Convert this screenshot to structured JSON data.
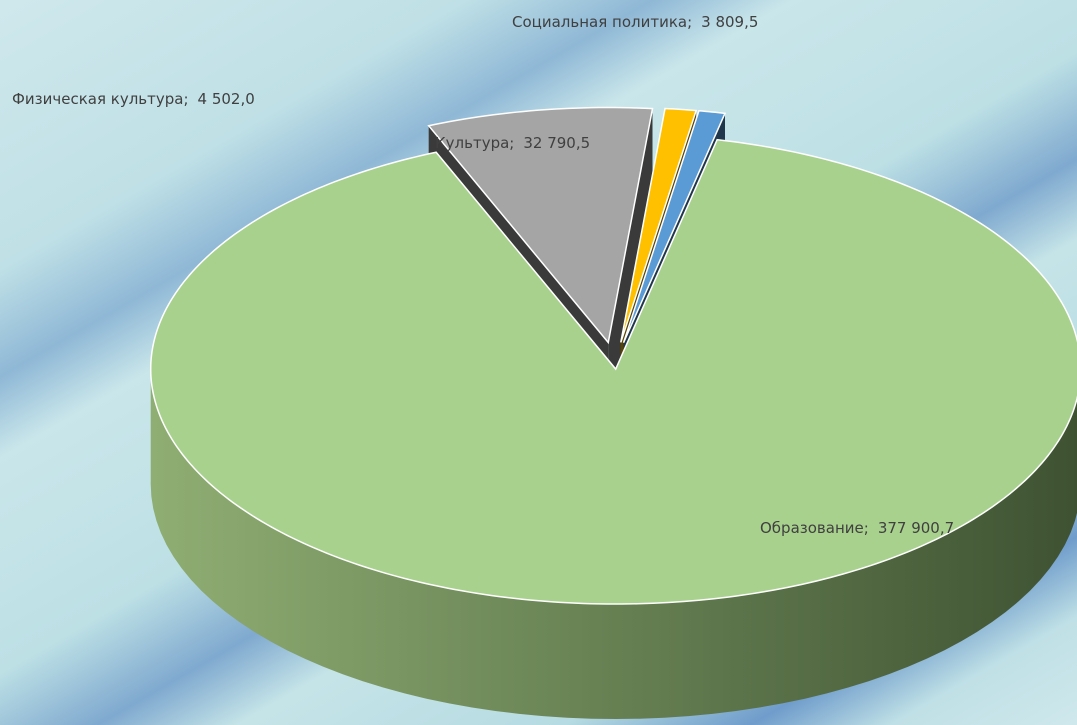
{
  "chart_data": {
    "type": "pie",
    "categories": [
      "Образование",
      "Культура",
      "Физическая культура",
      "Социальная политика"
    ],
    "values": [
      377900.7,
      32790.5,
      4502.0,
      3809.5
    ],
    "value_labels": [
      "377 900,7",
      "32 790,5",
      "4 502,0",
      "3 809,5"
    ],
    "label_separator": ";",
    "colors": [
      "#a9d18e",
      "#a5a5a5",
      "#ffc000",
      "#5b9bd5"
    ]
  }
}
